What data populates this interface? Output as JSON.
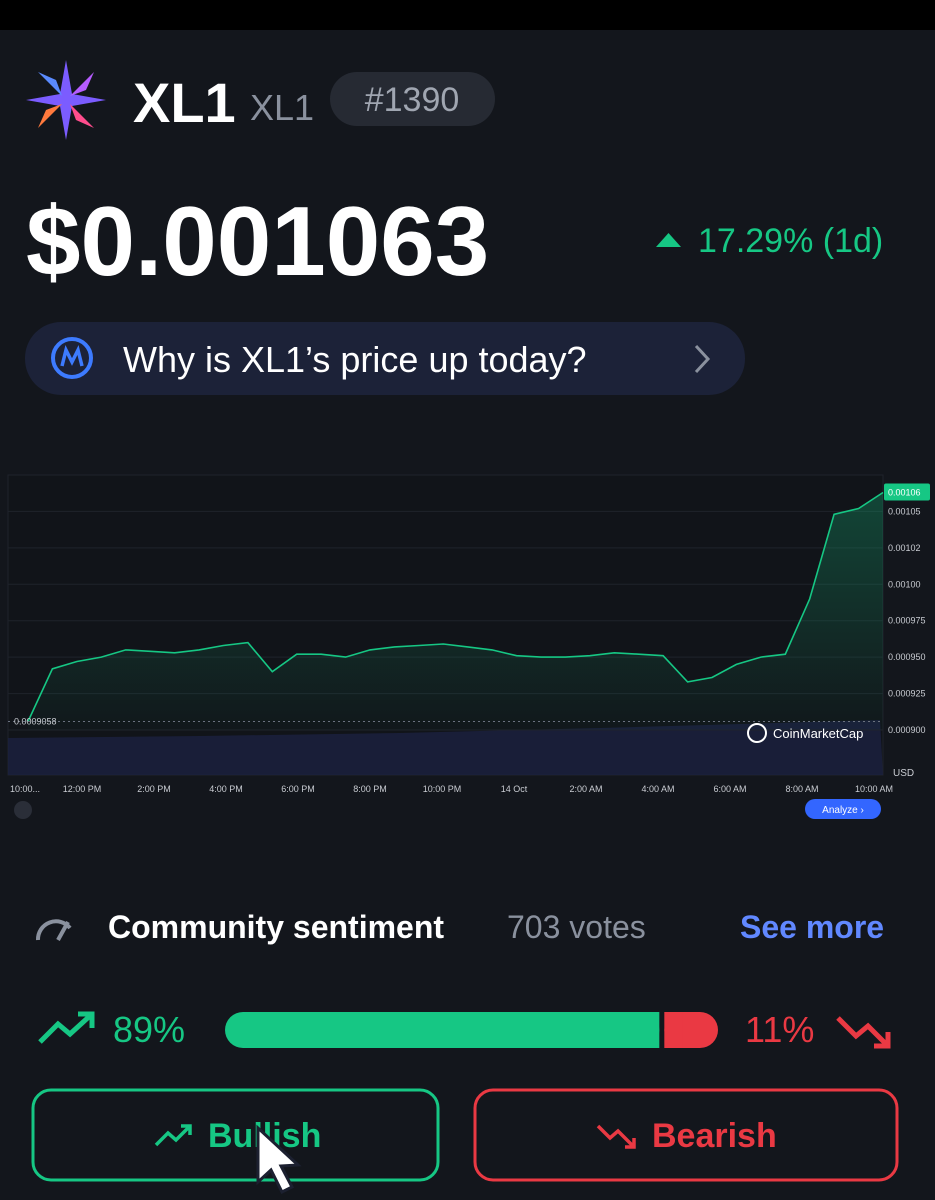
{
  "header": {
    "name": "XL1",
    "symbol": "XL1",
    "rank": "#1390"
  },
  "price": {
    "value": "$0.001063",
    "change": "17.29% (1d)"
  },
  "why_button": "Why is XL1’s price up today?",
  "chart": {
    "type": "line",
    "color": "#16c784",
    "values": [
      0.0009058,
      0.000942,
      0.000947,
      0.00095,
      0.000955,
      0.000954,
      0.000953,
      0.000955,
      0.000958,
      0.00096,
      0.00094,
      0.000952,
      0.000952,
      0.00095,
      0.000955,
      0.000957,
      0.000958,
      0.000959,
      0.000957,
      0.000955,
      0.000951,
      0.00095,
      0.00095,
      0.000951,
      0.000953,
      0.000952,
      0.000951,
      0.000933,
      0.000936,
      0.000945,
      0.00095,
      0.000952,
      0.00099,
      0.001048,
      0.001052,
      0.001063
    ],
    "ylim": [
      0.0009,
      0.001075
    ],
    "yticks": [
      {
        "value": 0.0009,
        "label": "0.000900"
      },
      0.000925,
      {
        "value": 0.00095,
        "label": "0.000950"
      },
      0.000975,
      {
        "value": 0.001,
        "label": "0.00100"
      },
      {
        "value": 0.001025,
        "label": "0.00102"
      },
      0.00105
    ],
    "xtick_labels": [
      "10:00...",
      "12:00 PM",
      "2:00 PM",
      "4:00 PM",
      "6:00 PM",
      "8:00 PM",
      "10:00 PM",
      "14 Oct",
      "2:00 AM",
      "4:00 AM",
      "6:00 AM",
      "8:00 AM",
      "10:00 AM"
    ],
    "start_label": "0.0009058",
    "current_label": "0.00106",
    "currency": "USD",
    "watermark": "CoinMarketCap",
    "analyze": "Analyze ›",
    "grid": true
  },
  "sentiment": {
    "title": "Community sentiment",
    "votes": "703 votes",
    "see_more": "See more",
    "bullish": {
      "value": 89,
      "label": "89%",
      "button": "Bullish",
      "color": "#16c784"
    },
    "bearish": {
      "value": 11,
      "label": "11%",
      "button": "Bearish",
      "color": "#ea3943"
    }
  }
}
